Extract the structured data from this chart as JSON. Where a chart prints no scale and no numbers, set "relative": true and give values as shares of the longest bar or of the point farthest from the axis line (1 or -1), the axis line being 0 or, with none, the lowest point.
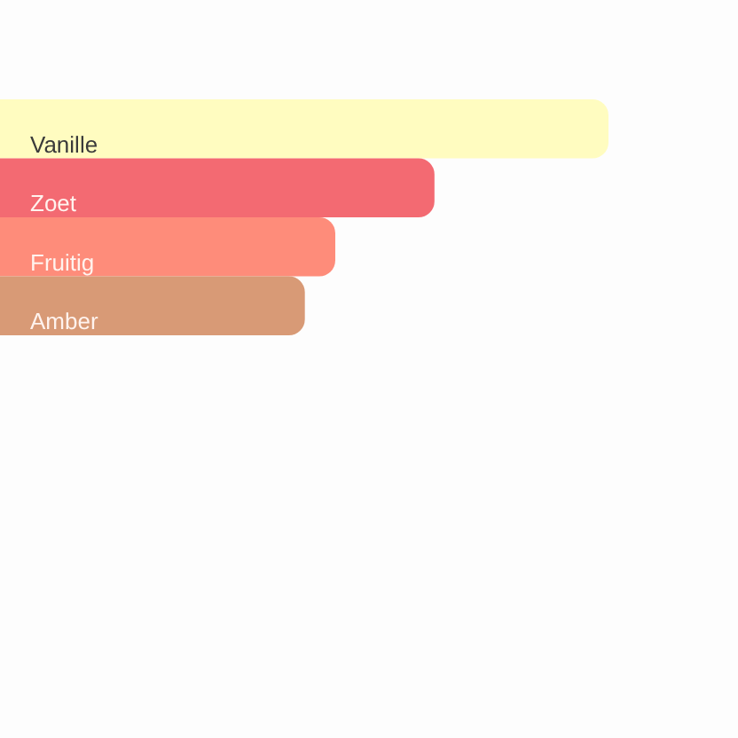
{
  "chart_data": {
    "type": "bar",
    "orientation": "horizontal",
    "relative": true,
    "categories": [
      "Vanille",
      "Zoet",
      "Fruitig",
      "Amber"
    ],
    "values": [
      1,
      0.714,
      0.551,
      0.501
    ],
    "colors": [
      "#fffcc0",
      "#f36a72",
      "#fe8c7a",
      "#d89a76"
    ]
  }
}
